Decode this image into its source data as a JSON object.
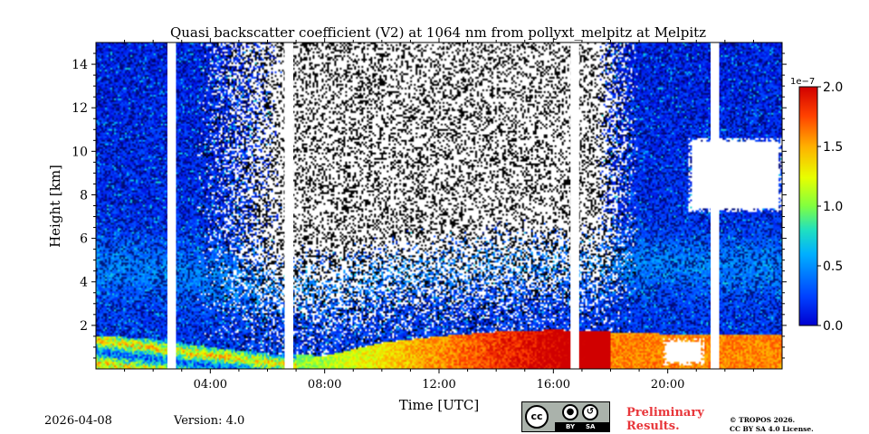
{
  "chart_data": {
    "type": "heatmap",
    "title": "Quasi backscatter coefficient (V2) at 1064 nm from pollyxt_melpitz at Melpitz",
    "xlabel": "Time [UTC]",
    "ylabel": "Height [km]",
    "xlim_hours": [
      0,
      24
    ],
    "ylim_km": [
      0,
      15
    ],
    "xticks": [
      {
        "value": 4,
        "label": "04:00"
      },
      {
        "value": 8,
        "label": "08:00"
      },
      {
        "value": 12,
        "label": "12:00"
      },
      {
        "value": 16,
        "label": "16:00"
      },
      {
        "value": 20,
        "label": "20:00"
      }
    ],
    "yticks": [
      {
        "value": 2,
        "label": "2"
      },
      {
        "value": 4,
        "label": "4"
      },
      {
        "value": 6,
        "label": "6"
      },
      {
        "value": 8,
        "label": "8"
      },
      {
        "value": 10,
        "label": "10"
      },
      {
        "value": 12,
        "label": "12"
      },
      {
        "value": 14,
        "label": "14"
      }
    ],
    "colorbar": {
      "range": [
        0,
        2.0
      ],
      "scale_label": "1e−7",
      "ticks": [
        {
          "value": 0.0,
          "label": "0.0"
        },
        {
          "value": 0.5,
          "label": "0.5"
        },
        {
          "value": 1.0,
          "label": "1.0"
        },
        {
          "value": 1.5,
          "label": "1.5"
        },
        {
          "value": 2.0,
          "label": "2.0"
        }
      ]
    },
    "data_gaps_hours": [
      [
        2.5,
        2.8
      ],
      [
        6.6,
        6.9
      ],
      [
        16.6,
        16.9
      ],
      [
        21.5,
        21.8
      ]
    ],
    "boundary_layer_top_km": [
      [
        0,
        1.5
      ],
      [
        2,
        1.4
      ],
      [
        4,
        1.0
      ],
      [
        6,
        0.7
      ],
      [
        8,
        0.6
      ],
      [
        10,
        1.2
      ],
      [
        12,
        1.5
      ],
      [
        14,
        1.7
      ],
      [
        16,
        1.8
      ],
      [
        18,
        1.7
      ],
      [
        20,
        1.6
      ],
      [
        22,
        1.6
      ],
      [
        24,
        1.6
      ]
    ],
    "cloud_segments": [
      {
        "t_start": 19.8,
        "t_end": 21.3,
        "h_bottom_km": 0.2,
        "h_top_km": 1.4
      },
      {
        "t_start": 20.7,
        "t_end": 24.0,
        "h_bottom_km": 7.2,
        "h_top_km": 10.6
      }
    ]
  },
  "footer": {
    "date": "2026-04-08",
    "version": "Version: 4.0",
    "preliminary_line1": "Preliminary",
    "preliminary_line2": "Results.",
    "copyright_line1": "© TROPOS 2026.",
    "copyright_line2": "CC BY SA 4.0 License.",
    "license_badge": {
      "cc": "cc",
      "by": "BY",
      "sa": "SA"
    }
  }
}
